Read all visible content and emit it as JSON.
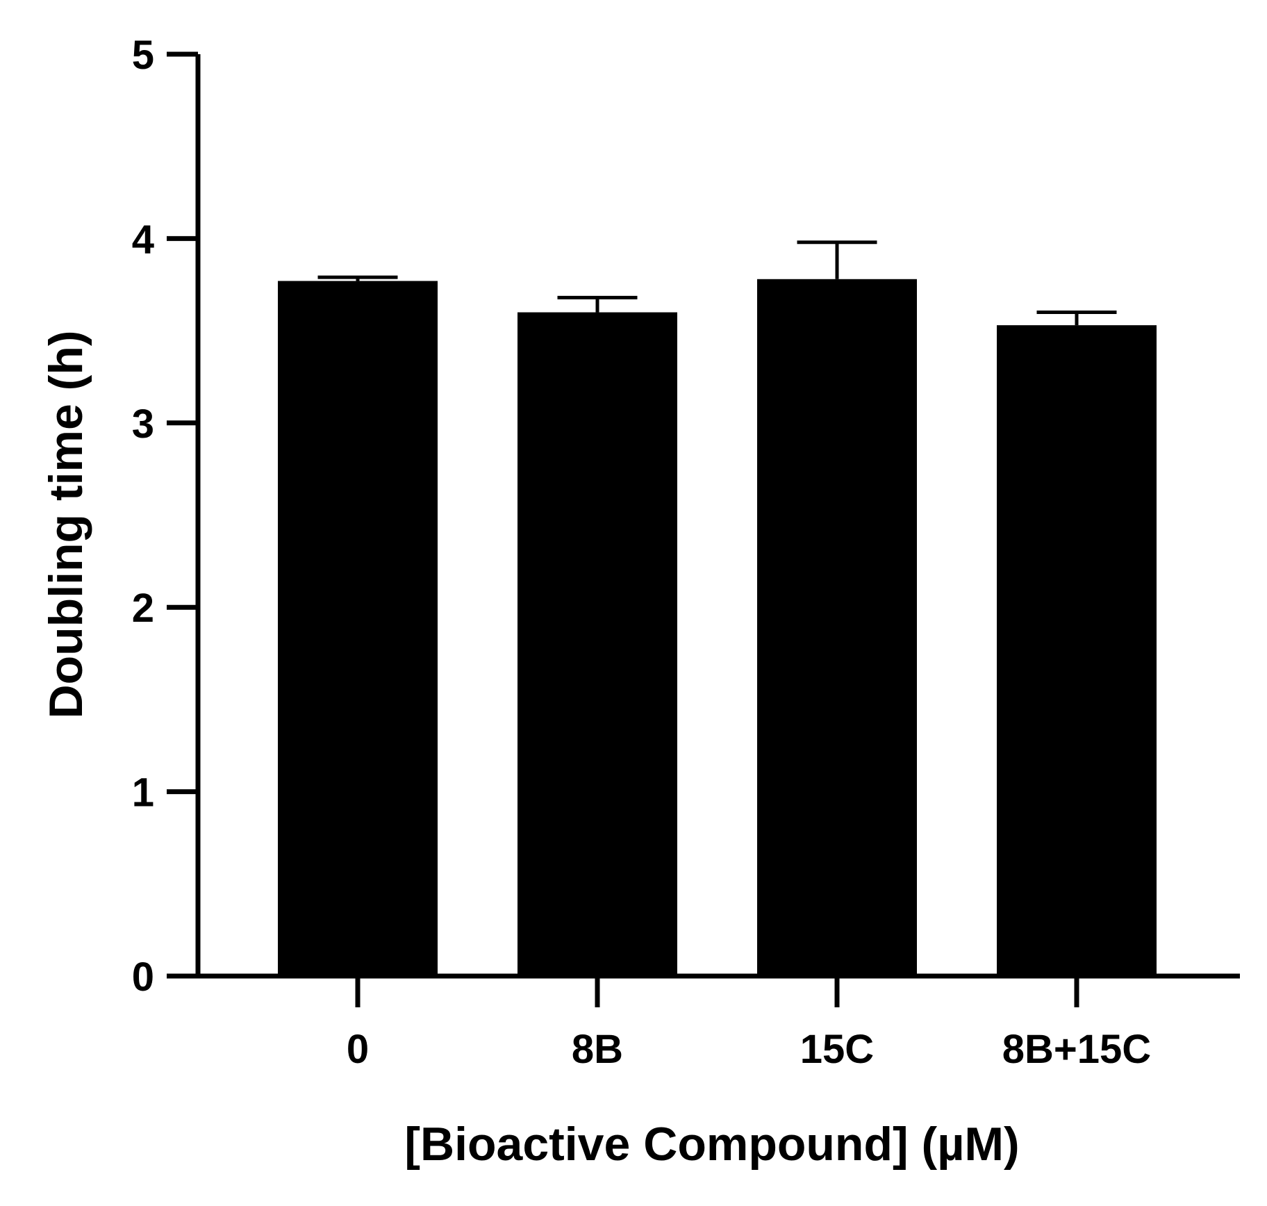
{
  "chart_data": {
    "type": "bar",
    "title": "",
    "xlabel": "[Bioactive Compound] (µM)",
    "ylabel": "Doubling time (h)",
    "categories": [
      "0",
      "8B",
      "15C",
      "8B+15C"
    ],
    "values": [
      3.77,
      3.6,
      3.78,
      3.53
    ],
    "errors": [
      0.02,
      0.08,
      0.2,
      0.07
    ],
    "ylim": [
      0,
      5
    ],
    "yticks": [
      0,
      1,
      2,
      3,
      4,
      5
    ],
    "grid": false,
    "legend": "none",
    "colors": {
      "bar": "#000000",
      "axis": "#000000",
      "background": "#ffffff"
    }
  }
}
